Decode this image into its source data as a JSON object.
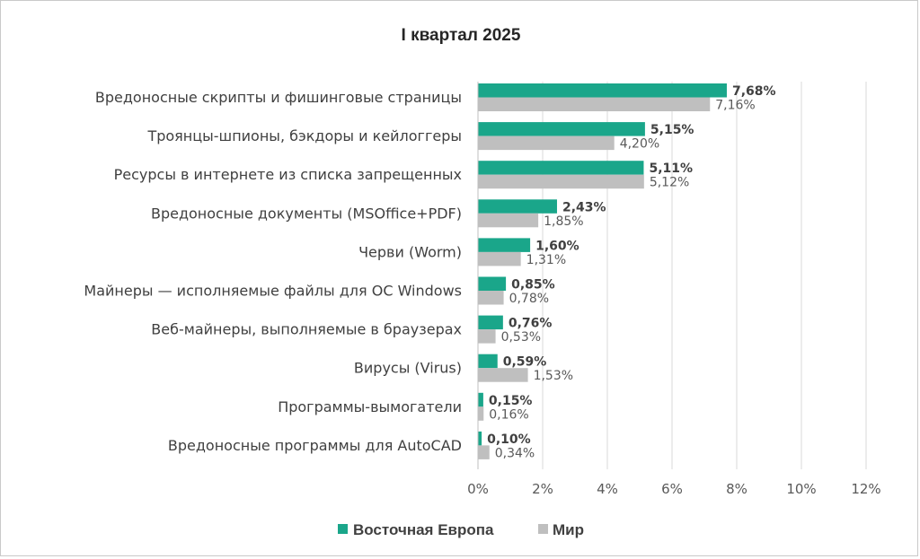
{
  "chart_data": {
    "type": "bar",
    "orientation": "horizontal",
    "title": "I квартал 2025",
    "categories": [
      "Вредоносные скрипты и фишинговые страницы",
      "Троянцы-шпионы, бэкдоры и кейлоггеры",
      "Ресурсы в интернете из списка запрещенных",
      "Вредоносные документы (MSOffice+PDF)",
      "Черви (Worm)",
      "Майнеры — исполняемые файлы для ОС Windows",
      "Веб-майнеры, выполняемые в браузерах",
      "Вирусы (Virus)",
      "Программы-вымогатели",
      "Вредоносные программы для AutoCAD"
    ],
    "series": [
      {
        "name": "Восточная Европа",
        "color": "#1aa68a",
        "values": [
          7.68,
          5.15,
          5.11,
          2.43,
          1.6,
          0.85,
          0.76,
          0.59,
          0.15,
          0.1
        ],
        "labels": [
          "7,68%",
          "5,15%",
          "5,11%",
          "2,43%",
          "1,60%",
          "0,85%",
          "0,76%",
          "0,59%",
          "0,15%",
          "0,10%"
        ]
      },
      {
        "name": "Мир",
        "color": "#bfbfbf",
        "values": [
          7.16,
          4.2,
          5.12,
          1.85,
          1.31,
          0.78,
          0.53,
          1.53,
          0.16,
          0.34
        ],
        "labels": [
          "7,16%",
          "4,20%",
          "5,12%",
          "1,85%",
          "1,31%",
          "0,78%",
          "0,53%",
          "1,53%",
          "0,16%",
          "0,34%"
        ]
      }
    ],
    "xlim": [
      0,
      12
    ],
    "xticks": [
      0,
      2,
      4,
      6,
      8,
      10,
      12
    ],
    "xtick_labels": [
      "0%",
      "2%",
      "4%",
      "6%",
      "8%",
      "10%",
      "12%"
    ],
    "grid": "vertical",
    "legend_position": "bottom"
  }
}
